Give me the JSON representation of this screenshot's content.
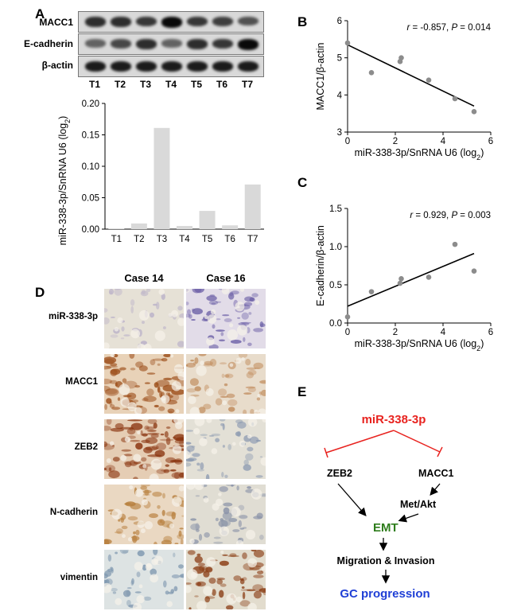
{
  "panels": {
    "A": "A",
    "B": "B",
    "C": "C",
    "D": "D",
    "E": "E"
  },
  "blot": {
    "rows": [
      "MACC1",
      "E-cadherin",
      "β-actin"
    ],
    "lanes": [
      "T1",
      "T2",
      "T3",
      "T4",
      "T5",
      "T6",
      "T7"
    ],
    "intensity": {
      "MACC1": [
        0.75,
        0.75,
        0.7,
        0.95,
        0.7,
        0.65,
        0.55
      ],
      "E-cadherin": [
        0.45,
        0.6,
        0.75,
        0.45,
        0.75,
        0.7,
        0.95
      ],
      "β-actin": [
        0.85,
        0.85,
        0.85,
        0.85,
        0.85,
        0.85,
        0.85
      ]
    }
  },
  "ihc": {
    "cases": [
      "Case 14",
      "Case 16"
    ],
    "rows": [
      "miR-338-3p",
      "MACC1",
      "ZEB2",
      "N-cadherin",
      "vimentin"
    ],
    "tiles": [
      [
        {
          "bg": "#e6e1d6",
          "stain": "#b9b0c8",
          "density": 0.15
        },
        {
          "bg": "#e2dce8",
          "stain": "#6e62a8",
          "density": 0.45
        }
      ],
      [
        {
          "bg": "#e8d2b8",
          "stain": "#9c4e1a",
          "density": 0.75
        },
        {
          "bg": "#e8dccb",
          "stain": "#c08a5a",
          "density": 0.35
        }
      ],
      [
        {
          "bg": "#e5cdb4",
          "stain": "#8a3510",
          "density": 0.85
        },
        {
          "bg": "#e3e0d6",
          "stain": "#8a98b0",
          "density": 0.25
        }
      ],
      [
        {
          "bg": "#ead8c2",
          "stain": "#b8803e",
          "density": 0.45
        },
        {
          "bg": "#e0ddd3",
          "stain": "#8a93a8",
          "density": 0.3
        }
      ],
      [
        {
          "bg": "#dde3e3",
          "stain": "#8098b0",
          "density": 0.25
        },
        {
          "bg": "#e2dccd",
          "stain": "#8b3e16",
          "density": 0.5
        }
      ]
    ]
  },
  "chart_data": [
    {
      "type": "bar",
      "ylabel": "miR-338-3p/SnRNA U6 (log2)",
      "categories": [
        "T1",
        "T2",
        "T3",
        "T4",
        "T5",
        "T6",
        "T7"
      ],
      "values": [
        0.001,
        0.009,
        0.161,
        0.005,
        0.029,
        0.006,
        0.071
      ],
      "ylim": [
        0,
        0.2
      ],
      "yticks": [
        "0.00",
        "0.05",
        "0.10",
        "0.15",
        "0.20"
      ],
      "bar_color": "#d9d9d9"
    },
    {
      "type": "scatter",
      "annotation": "r = -0.857, P = 0.014",
      "xlabel": "miR-338-3p/SnRNA U6 (log2)",
      "ylabel": "MACC1/β-actin",
      "xlim": [
        0,
        6
      ],
      "ylim": [
        3,
        6
      ],
      "xticks": [
        0,
        2,
        4,
        6
      ],
      "yticks": [
        3,
        4,
        5,
        6
      ],
      "points": [
        [
          0,
          5.4
        ],
        [
          1.0,
          4.6
        ],
        [
          2.2,
          4.9
        ],
        [
          2.25,
          5.0
        ],
        [
          3.4,
          4.4
        ],
        [
          4.5,
          3.9
        ],
        [
          5.3,
          3.55
        ]
      ],
      "fit": [
        [
          0,
          5.35
        ],
        [
          5.3,
          3.7
        ]
      ]
    },
    {
      "type": "scatter",
      "annotation": "r = 0.929, P = 0.003",
      "xlabel": "miR-338-3p/SnRNA U6 (log2)",
      "ylabel": "E-cadherin/β-actin",
      "xlim": [
        0,
        6
      ],
      "ylim": [
        0,
        1.5
      ],
      "xticks": [
        0,
        2,
        4,
        6
      ],
      "yticks": [
        "0.0",
        "0.5",
        "1.0",
        "1.5"
      ],
      "points": [
        [
          0,
          0.08
        ],
        [
          1.0,
          0.41
        ],
        [
          2.2,
          0.52
        ],
        [
          2.25,
          0.58
        ],
        [
          3.4,
          0.6
        ],
        [
          4.5,
          1.03
        ],
        [
          5.3,
          0.68
        ]
      ],
      "fit": [
        [
          0,
          0.22
        ],
        [
          5.3,
          0.91
        ]
      ]
    }
  ],
  "diagram": {
    "mir": "miR-338-3p",
    "zeb2": "ZEB2",
    "macc1": "MACC1",
    "metakt": "Met/Akt",
    "emt": "EMT",
    "migration": "Migration & Invasion",
    "gc": "GC progression",
    "colors": {
      "mir": "#e8231f",
      "emt": "#2e7d1c",
      "gc": "#1f3fd6"
    }
  }
}
